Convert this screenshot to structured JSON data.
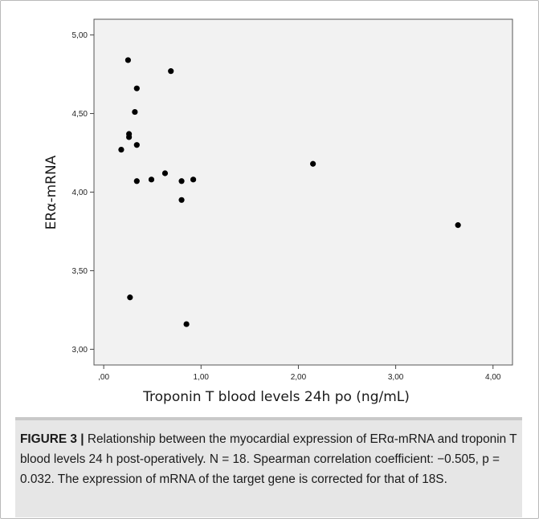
{
  "chart_data": {
    "type": "scatter",
    "xlabel": "Troponin T blood levels 24h po (ng/mL)",
    "ylabel": "ERα-mRNA",
    "xlim": [
      -0.1,
      4.2
    ],
    "ylim": [
      2.9,
      5.1
    ],
    "x_ticks": [
      0,
      1,
      2,
      3,
      4
    ],
    "x_tick_labels": [
      ",00",
      "1,00",
      "2,00",
      "3,00",
      "4,00"
    ],
    "y_ticks": [
      3,
      3.5,
      4,
      4.5,
      5
    ],
    "y_tick_labels": [
      "3,00",
      "3,50",
      "4,00",
      "4,50",
      "5,00"
    ],
    "grid": false,
    "marker_color": "#000000",
    "plot_background": "#f2f2f2",
    "points": [
      {
        "x": 0.25,
        "y": 4.84
      },
      {
        "x": 0.69,
        "y": 4.77
      },
      {
        "x": 0.34,
        "y": 4.66
      },
      {
        "x": 0.32,
        "y": 4.51
      },
      {
        "x": 0.26,
        "y": 4.37
      },
      {
        "x": 0.26,
        "y": 4.35
      },
      {
        "x": 0.34,
        "y": 4.3
      },
      {
        "x": 0.18,
        "y": 4.27
      },
      {
        "x": 0.63,
        "y": 4.12
      },
      {
        "x": 0.49,
        "y": 4.08
      },
      {
        "x": 0.34,
        "y": 4.07
      },
      {
        "x": 0.8,
        "y": 4.07
      },
      {
        "x": 0.92,
        "y": 4.08
      },
      {
        "x": 2.15,
        "y": 4.18
      },
      {
        "x": 0.8,
        "y": 3.95
      },
      {
        "x": 3.64,
        "y": 3.79
      },
      {
        "x": 0.27,
        "y": 3.33
      },
      {
        "x": 0.85,
        "y": 3.16
      }
    ]
  },
  "caption": {
    "label": "FIGURE 3 |",
    "text": " Relationship between the myocardial expression of ERα-mRNA and troponin T blood levels 24 h post-operatively. N = 18. Spearman correlation coefficient: −0.505, p = 0.032. The expression of mRNA of the target gene is corrected for that of 18S."
  }
}
